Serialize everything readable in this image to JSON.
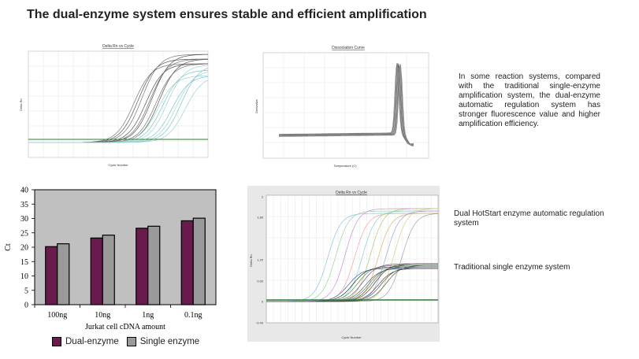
{
  "heading": "The dual-enzyme system ensures stable and efficient amplification",
  "description": "In some reaction systems, compared with the traditional single-enzyme amplification system, the dual-enzyme automatic regulation system has stronger fluorescence value and higher amplification efficiency.",
  "annotations": {
    "dual": "Dual HotStart enzyme automatic regulation system",
    "single": "Traditional single enzyme system"
  },
  "colors": {
    "dual": "#6a1b4d",
    "single": "#9a9a9a",
    "plot_bg": "#c0c0c0",
    "threshold": "#2e7d32"
  },
  "chart_data": [
    {
      "type": "line",
      "title": "Delta Rn vs Cycle",
      "xlabel": "Cycle Number",
      "ylabel": "Delta Rn",
      "series_description": "Amplification curves (dark and cyan groups) with green threshold line"
    },
    {
      "type": "line",
      "title": "Dissociation Curve",
      "xlabel": "Temperature (C)",
      "ylabel": "Derivative",
      "series_description": "Melt curves with a single peak near the high-temperature end"
    },
    {
      "type": "bar",
      "categories": [
        "100ng",
        "10ng",
        "1ng",
        "0.1ng"
      ],
      "series": [
        {
          "name": "Dual-enzyme",
          "values": [
            20.2,
            23.2,
            26.6,
            29.2
          ]
        },
        {
          "name": "Single enzyme",
          "values": [
            21.2,
            24.2,
            27.3,
            30.1
          ]
        }
      ],
      "xlabel": "Jurkat cell cDNA amount",
      "ylabel": "Ct",
      "ylim": [
        0,
        40
      ],
      "yticks": [
        "0",
        "5",
        "10",
        "15",
        "20",
        "25",
        "30",
        "35",
        "40"
      ],
      "legend_position": "bottom"
    },
    {
      "type": "line",
      "title": "Delta Rn vs Cycle",
      "xlabel": "Cycle Number",
      "ylabel": "Delta Rn",
      "yticks": [
        "-0.40",
        "0",
        "0.60",
        "1.20",
        "1.80",
        "2"
      ],
      "series_description": "Upper plateau group (dual HotStart) and lower plateau group (single enzyme) with green threshold"
    }
  ]
}
